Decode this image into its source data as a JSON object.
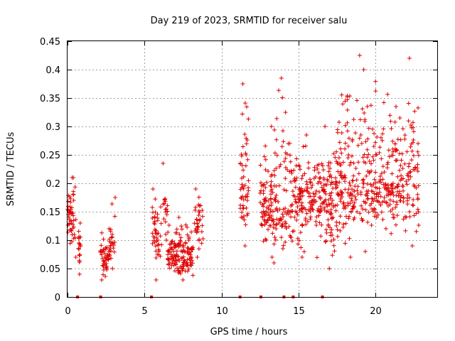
{
  "chart_data": {
    "type": "scatter",
    "title": "Day 219 of 2023, SRMTID for receiver salu",
    "xlabel": "GPS time / hours",
    "ylabel": "SRMTID / TECUs",
    "xlim": [
      0,
      24
    ],
    "ylim": [
      0,
      0.45
    ],
    "xticks": [
      0,
      5,
      10,
      15,
      20
    ],
    "xtick_labels": [
      "0",
      "5",
      "10",
      "15",
      "20"
    ],
    "yticks": [
      0,
      0.05,
      0.1,
      0.15,
      0.2,
      0.25,
      0.3,
      0.35,
      0.4,
      0.45
    ],
    "ytick_labels": [
      "0",
      "0.05",
      "0.1",
      "0.15",
      "0.2",
      "0.25",
      "0.3",
      "0.35",
      "0.4",
      "0.45"
    ],
    "grid": true,
    "marker": "+",
    "color": "#e00000",
    "series": [
      {
        "name": "SRMTID",
        "clusters": [
          {
            "t": [
              0.0,
              0.55
            ],
            "ymin": 0.07,
            "ymax": 0.21,
            "center": 0.14,
            "n": 45
          },
          {
            "t": [
              0.35,
              0.5
            ],
            "ymin": 0.17,
            "ymax": 0.21,
            "center": 0.19,
            "n": 6
          },
          {
            "t": [
              0.7,
              0.85
            ],
            "ymin": 0.04,
            "ymax": 0.13,
            "center": 0.09,
            "n": 20
          },
          {
            "t": [
              2.1,
              2.7
            ],
            "ymin": 0.03,
            "ymax": 0.12,
            "center": 0.065,
            "n": 45
          },
          {
            "t": [
              2.7,
              3.1
            ],
            "ymin": 0.05,
            "ymax": 0.175,
            "center": 0.1,
            "n": 25
          },
          {
            "t": [
              5.5,
              6.1
            ],
            "ymin": 0.03,
            "ymax": 0.19,
            "center": 0.1,
            "n": 45
          },
          {
            "t": [
              6.2,
              6.5
            ],
            "ymin": 0.1,
            "ymax": 0.235,
            "center": 0.16,
            "n": 18
          },
          {
            "t": [
              6.5,
              8.2
            ],
            "ymin": 0.03,
            "ymax": 0.14,
            "center": 0.07,
            "n": 150
          },
          {
            "t": [
              8.2,
              8.8
            ],
            "ymin": 0.07,
            "ymax": 0.19,
            "center": 0.13,
            "n": 35
          },
          {
            "t": [
              11.2,
              11.75
            ],
            "ymin": 0.09,
            "ymax": 0.375,
            "center": 0.2,
            "n": 55
          },
          {
            "t": [
              12.5,
              13.4
            ],
            "ymin": 0.07,
            "ymax": 0.3,
            "center": 0.15,
            "n": 85
          },
          {
            "t": [
              13.4,
              14.5
            ],
            "ymin": 0.06,
            "ymax": 0.385,
            "center": 0.16,
            "n": 85
          },
          {
            "t": [
              14.5,
              16.0
            ],
            "ymin": 0.07,
            "ymax": 0.285,
            "center": 0.17,
            "n": 120
          },
          {
            "t": [
              16.0,
              17.5
            ],
            "ymin": 0.05,
            "ymax": 0.3,
            "center": 0.17,
            "n": 130
          },
          {
            "t": [
              17.5,
              19.0
            ],
            "ymin": 0.07,
            "ymax": 0.425,
            "center": 0.19,
            "n": 130
          },
          {
            "t": [
              19.0,
              20.5
            ],
            "ymin": 0.08,
            "ymax": 0.4,
            "center": 0.2,
            "n": 120
          },
          {
            "t": [
              20.5,
              22.8
            ],
            "ymin": 0.09,
            "ymax": 0.42,
            "center": 0.2,
            "n": 180
          }
        ]
      }
    ],
    "zero_markers_t": [
      0.65,
      2.15,
      5.45,
      11.2,
      12.55,
      14.05,
      14.65,
      16.55
    ]
  }
}
